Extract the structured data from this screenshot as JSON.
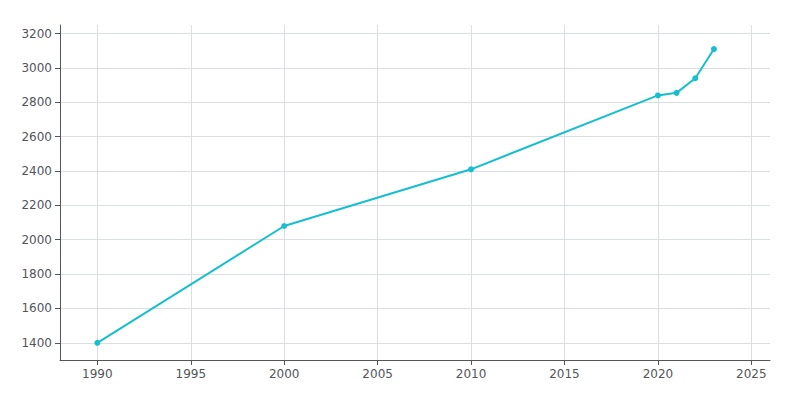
{
  "chart_data": {
    "type": "line",
    "x": [
      1990,
      2000,
      2010,
      2020,
      2021,
      2022,
      2023
    ],
    "values": [
      1400,
      2080,
      2410,
      2840,
      2855,
      2940,
      3110
    ],
    "color": "#17becf",
    "marker": "circle",
    "xlim": [
      1988,
      2026
    ],
    "xticks": [
      1990,
      1995,
      2000,
      2005,
      2010,
      2015,
      2020,
      2025
    ],
    "ylim": [
      1300,
      3250
    ],
    "yticks": [
      1400,
      1600,
      1800,
      2000,
      2200,
      2400,
      2600,
      2800,
      3000,
      3200
    ],
    "grid": true
  }
}
